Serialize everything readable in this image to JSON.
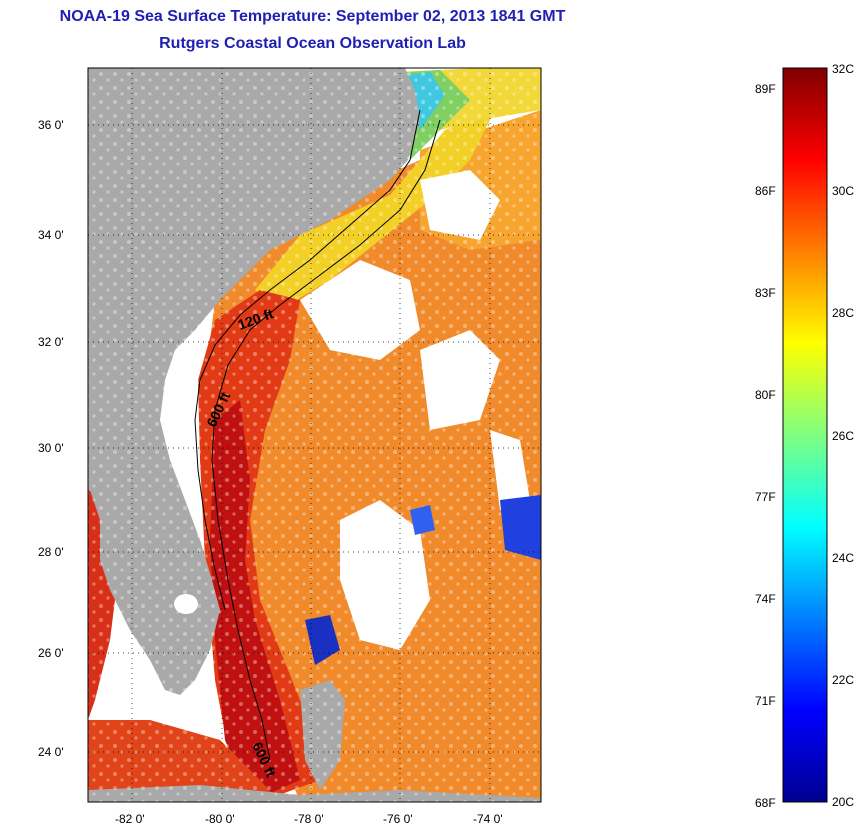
{
  "title": {
    "line1": "NOAA-19 Sea Surface Temperature:  September 02, 2013 1841 GMT",
    "line2": "Rutgers Coastal Ocean Observation Lab"
  },
  "map": {
    "lat_labels": [
      "36 0'",
      "34 0'",
      "32 0'",
      "30 0'",
      "28 0'",
      "26 0'",
      "24 0'"
    ],
    "lon_labels": [
      "-82 0'",
      "-80 0'",
      "-78 0'",
      "-76 0'",
      "-74 0'"
    ],
    "isobaths": [
      {
        "label": "120 ft"
      },
      {
        "label": "600 ft"
      },
      {
        "label": "600 ft"
      }
    ],
    "colors": {
      "land": "#a9a9a9",
      "cloud": "#ffffff",
      "warm_water": "#f07020",
      "hot_water": "#d01010",
      "shelf_water": "#f5c020"
    }
  },
  "colorbar": {
    "fahrenheit_labels": [
      "89F",
      "86F",
      "83F",
      "80F",
      "77F",
      "74F",
      "71F",
      "68F"
    ],
    "celsius_labels": [
      "32C",
      "30C",
      "28C",
      "26C",
      "24C",
      "22C",
      "20C"
    ],
    "min_c": 20,
    "max_c": 32
  }
}
